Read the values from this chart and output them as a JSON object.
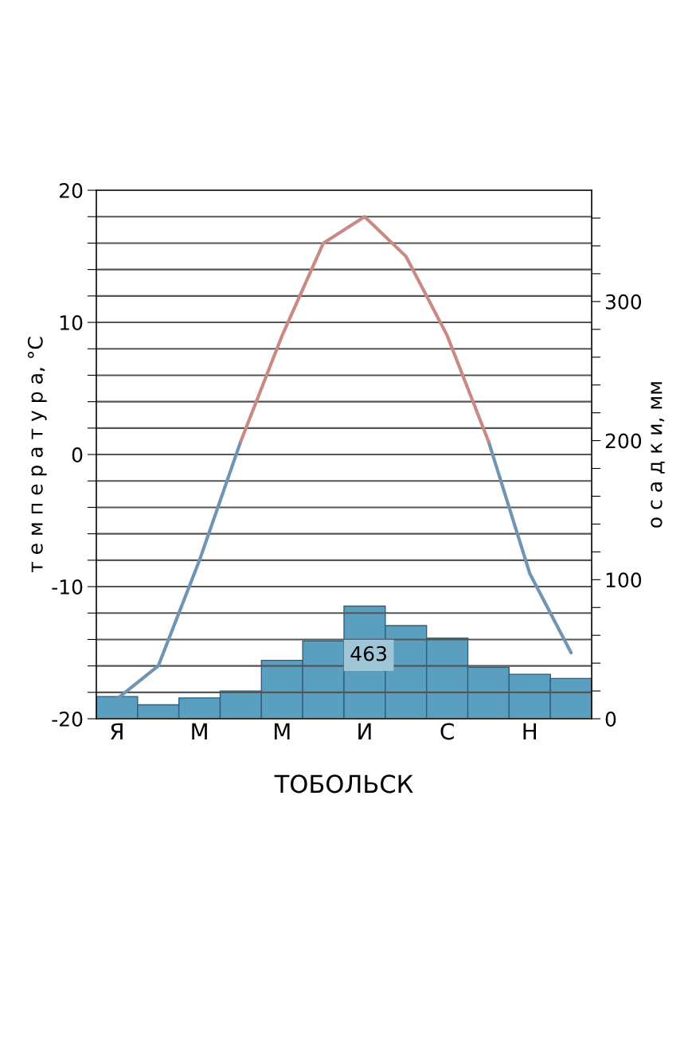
{
  "chart_data": {
    "type": "bar",
    "title": "ТОБОЛЬСК",
    "categories": [
      "Я",
      null,
      "М",
      null,
      "М",
      null,
      "И",
      null,
      "С",
      null,
      "Н",
      null
    ],
    "series": [
      {
        "axis": "y2",
        "color": "#5b9fc0",
        "values": [
          16,
          10,
          15,
          20,
          42,
          56,
          81,
          67,
          58,
          37,
          32,
          29
        ]
      },
      {
        "type": "line",
        "axis": "y",
        "color": "#6f95b3",
        "values": [
          -18.5,
          -16,
          -8,
          1,
          null,
          null,
          null,
          null,
          null,
          1,
          -9,
          -15
        ]
      },
      {
        "type": "line",
        "axis": "y",
        "color": "#c98a86",
        "values": [
          null,
          null,
          null,
          1,
          9,
          16,
          18,
          15,
          9,
          1,
          null,
          null
        ]
      }
    ],
    "ylabel": "т е м п е р а т у р а, °C",
    "y2label": "о с а д к и, мм",
    "ylim": [
      -20,
      20
    ],
    "yticks": [
      -20,
      {
        "value": -18,
        "label": null
      },
      {
        "value": -16,
        "label": null
      },
      {
        "value": -14,
        "label": null
      },
      {
        "value": -12,
        "label": null
      },
      -10,
      {
        "value": -8,
        "label": null
      },
      {
        "value": -6,
        "label": null
      },
      {
        "value": -4,
        "label": null
      },
      {
        "value": -2,
        "label": null
      },
      0,
      {
        "value": 2,
        "label": null
      },
      {
        "value": 4,
        "label": null
      },
      {
        "value": 6,
        "label": null
      },
      {
        "value": 8,
        "label": null
      },
      10,
      {
        "value": 12,
        "label": null
      },
      {
        "value": 14,
        "label": null
      },
      {
        "value": 16,
        "label": null
      },
      {
        "value": 18,
        "label": null
      },
      20
    ],
    "y2lim": [
      0,
      380
    ],
    "y2ticks": [
      0,
      {
        "value": 20,
        "label": null
      },
      {
        "value": 40,
        "label": null
      },
      {
        "value": 60,
        "label": null
      },
      {
        "value": 80,
        "label": null
      },
      100,
      {
        "value": 120,
        "label": null
      },
      {
        "value": 140,
        "label": null
      },
      {
        "value": 160,
        "label": null
      },
      {
        "value": 180,
        "label": null
      },
      200,
      {
        "value": 220,
        "label": null
      },
      {
        "value": 240,
        "label": null
      },
      {
        "value": 260,
        "label": null
      },
      {
        "value": 280,
        "label": null
      },
      300,
      {
        "value": 320,
        "label": null
      },
      {
        "value": 340,
        "label": null
      },
      {
        "value": 360,
        "label": null
      }
    ],
    "annotations": [
      "463"
    ],
    "grid": "y"
  }
}
